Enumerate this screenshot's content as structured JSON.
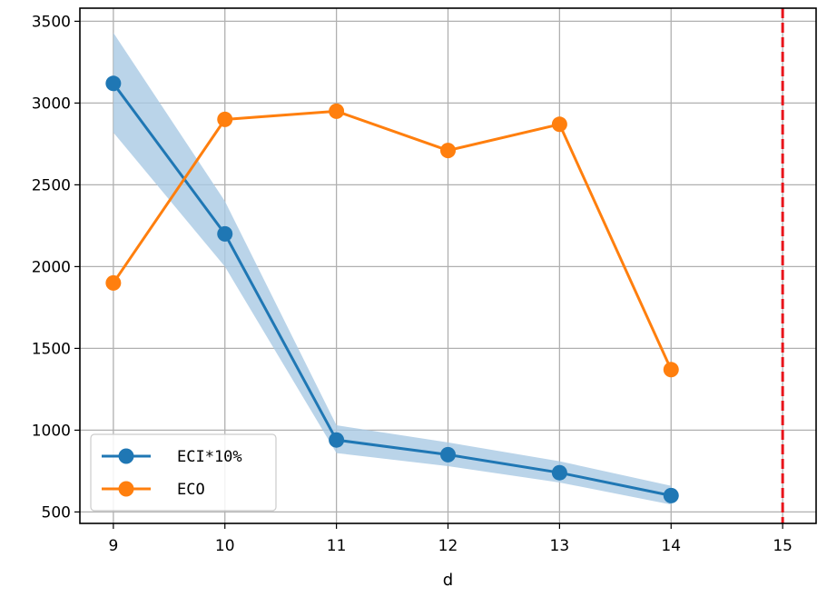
{
  "chart_data": {
    "type": "line",
    "title": "",
    "xlabel": "d",
    "ylabel": "",
    "x": [
      9,
      10,
      11,
      12,
      13,
      14
    ],
    "xlim": [
      8.7,
      15.3
    ],
    "ylim": [
      430,
      3580
    ],
    "xticks": [
      9,
      10,
      11,
      12,
      13,
      14,
      15
    ],
    "yticks": [
      500,
      1000,
      1500,
      2000,
      2500,
      3000,
      3500
    ],
    "grid": true,
    "legend_position": "lower-left",
    "series": [
      {
        "name": "ECI*10%",
        "color": "#1f77b4",
        "values": [
          3120,
          2200,
          940,
          850,
          740,
          600
        ],
        "band_lower": [
          2820,
          2000,
          860,
          780,
          680,
          545
        ],
        "band_upper": [
          3430,
          2400,
          1030,
          925,
          810,
          660
        ],
        "band_color": "#a9c9e3"
      },
      {
        "name": "ECO",
        "color": "#ff7f0e",
        "values": [
          1900,
          2900,
          2950,
          2710,
          2870,
          1370
        ]
      }
    ],
    "vline": {
      "x": 15,
      "color": "#e8141b",
      "style": "dashed"
    }
  }
}
